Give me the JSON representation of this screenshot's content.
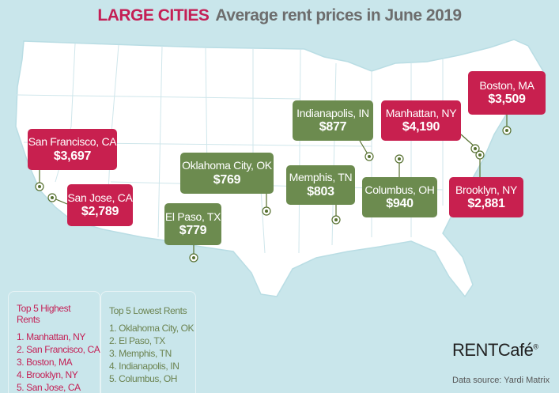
{
  "title": {
    "highlight": "LARGE CITIES",
    "text": "Average rent prices in June 2019"
  },
  "colors": {
    "background": "#c9e6eb",
    "high": "#c8204f",
    "low": "#6c8b4f",
    "map": "#ffffff"
  },
  "cities": [
    {
      "name": "Boston, MA",
      "price": "$3,509",
      "group": "high"
    },
    {
      "name": "Manhattan, NY",
      "price": "$4,190",
      "group": "high"
    },
    {
      "name": "Indianapolis, IN",
      "price": "$877",
      "group": "low"
    },
    {
      "name": "San Francisco, CA",
      "price": "$3,697",
      "group": "high"
    },
    {
      "name": "San Jose, CA",
      "price": "$2,789",
      "group": "high"
    },
    {
      "name": "Oklahoma City, OK",
      "price": "$769",
      "group": "low"
    },
    {
      "name": "Memphis, TN",
      "price": "$803",
      "group": "low"
    },
    {
      "name": "Columbus, OH",
      "price": "$940",
      "group": "low"
    },
    {
      "name": "Brooklyn, NY",
      "price": "$2,881",
      "group": "high"
    },
    {
      "name": "El Paso, TX",
      "price": "$779",
      "group": "low"
    }
  ],
  "legend_high": {
    "title": "Top 5 Highest Rents",
    "items": [
      "1. Manhattan, NY",
      "2. San Francisco, CA",
      "3. Boston, MA",
      "4. Brooklyn, NY",
      "5. San Jose, CA"
    ]
  },
  "legend_low": {
    "title": "Top 5 Lowest Rents",
    "items": [
      "1. Oklahoma City, OK",
      "2. El Paso, TX",
      "3. Memphis, TN",
      "4. Indianapolis, IN",
      "5. Columbus, OH"
    ]
  },
  "brand": {
    "name": "RENTCafé",
    "mark": "®"
  },
  "source": "Data source:  Yardi Matrix"
}
